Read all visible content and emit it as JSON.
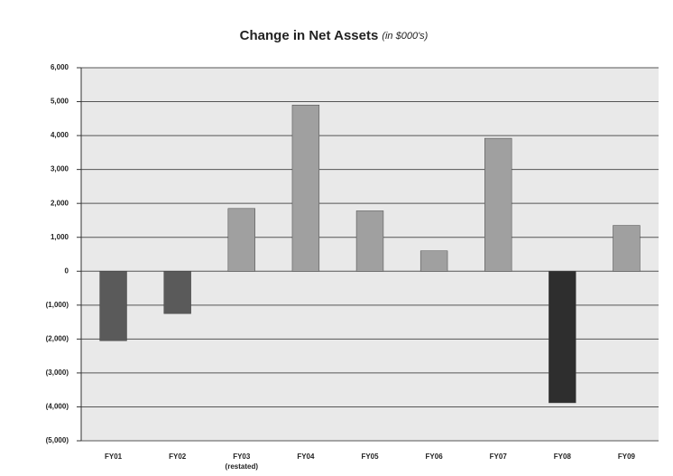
{
  "chart_data": {
    "type": "bar",
    "title": "Change in Net Assets",
    "title_note": "(in $000's)",
    "categories": [
      "FY01",
      "FY02",
      "FY03\n(restated)",
      "FY04",
      "FY05",
      "FY06",
      "FY07",
      "FY08",
      "FY09"
    ],
    "values": [
      -2050,
      -1250,
      1850,
      4900,
      1780,
      600,
      3920,
      -3880,
      1350
    ],
    "colors": [
      "#5a5a5a",
      "#5a5a5a",
      "#a0a0a0",
      "#a0a0a0",
      "#a0a0a0",
      "#a0a0a0",
      "#a0a0a0",
      "#2e2e2e",
      "#a0a0a0"
    ],
    "ylim": [
      -5000,
      6000
    ],
    "yticks": [
      {
        "value": -5000,
        "label": "(5,000)"
      },
      {
        "value": -4000,
        "label": "(4,000)"
      },
      {
        "value": -3000,
        "label": "(3,000)"
      },
      {
        "value": -2000,
        "label": "(2,000)"
      },
      {
        "value": -1000,
        "label": "(1,000)"
      },
      0,
      {
        "value": 1000,
        "label": "1,000"
      },
      {
        "value": 2000,
        "label": "2,000"
      },
      {
        "value": 3000,
        "label": "3,000"
      },
      {
        "value": 4000,
        "label": "4,000"
      },
      {
        "value": 5000,
        "label": "5,000"
      },
      {
        "value": 6000,
        "label": "6,000"
      }
    ],
    "grid": true
  }
}
